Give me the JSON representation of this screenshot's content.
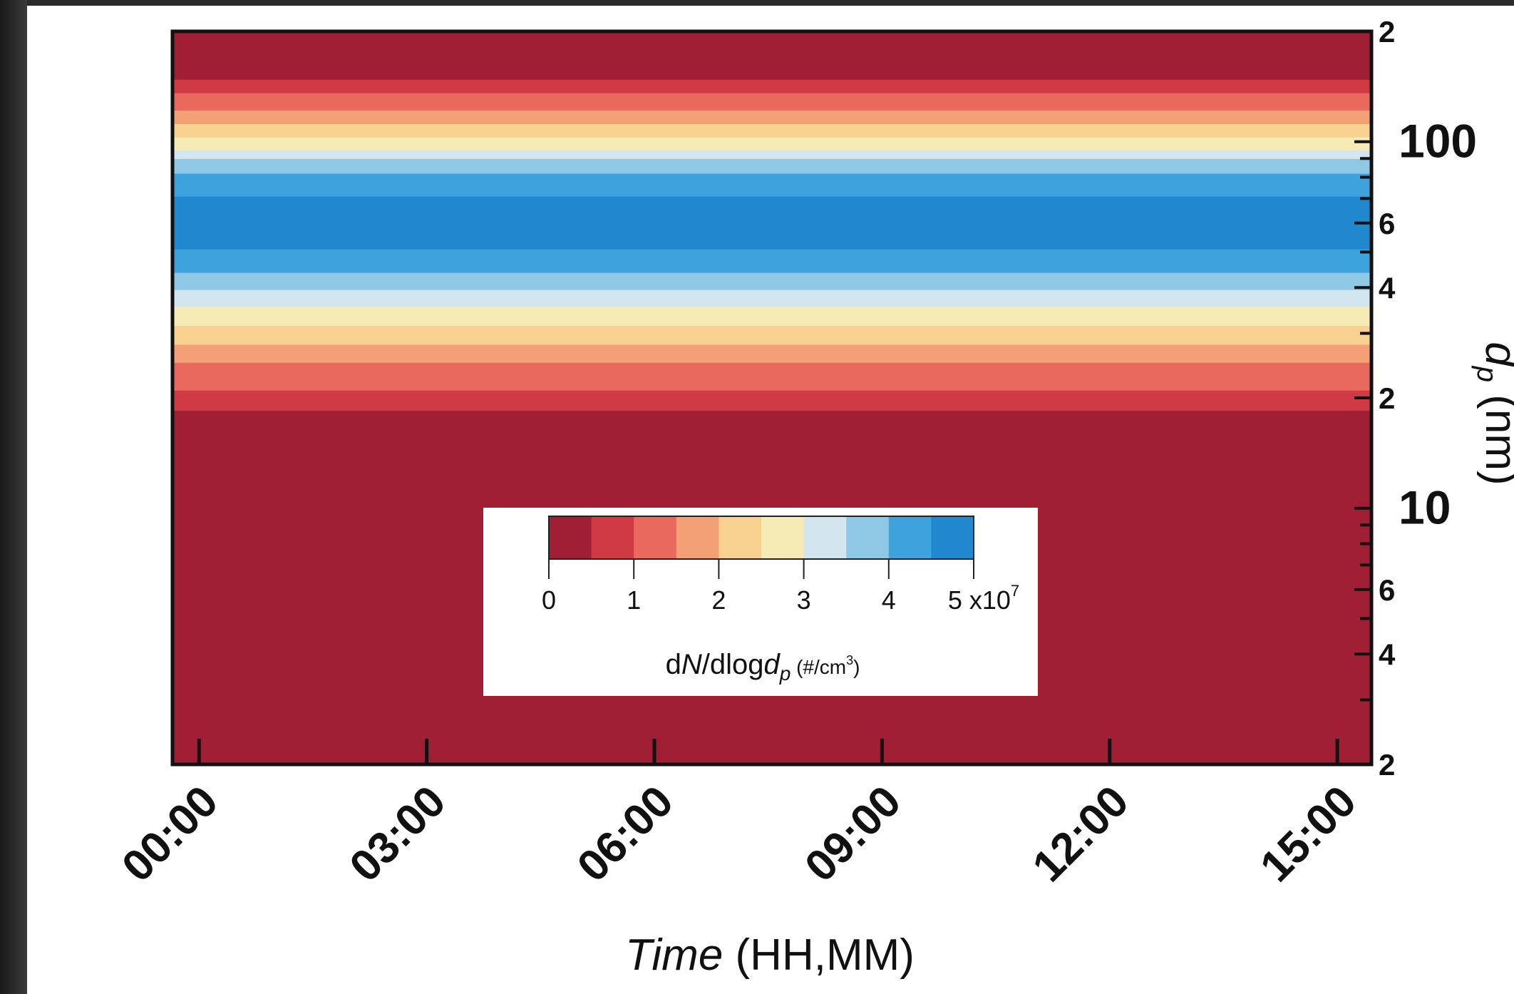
{
  "chart_data": {
    "type": "heatmap",
    "title": "",
    "xlabel_italic": "Time",
    "xlabel_rest": " (HH,MM)",
    "ylabel_var": "d",
    "ylabel_sub": "p",
    "ylabel_unit": " (nm)",
    "x_tick_labels": [
      "00:00",
      "03:00",
      "06:00",
      "09:00",
      "12:00",
      "15:00"
    ],
    "x_tick_hours": [
      0,
      3,
      6,
      9,
      12,
      15
    ],
    "xlim_hours": [
      -0.35,
      15.45
    ],
    "y_scale": "log",
    "ylim": [
      2,
      200
    ],
    "y_tick_labels": [
      {
        "v": 2,
        "t": "2"
      },
      {
        "v": 4,
        "t": "4"
      },
      {
        "v": 6,
        "t": "6"
      },
      {
        "v": 10,
        "t": "10"
      },
      {
        "v": 20,
        "t": "2"
      },
      {
        "v": 40,
        "t": "4"
      },
      {
        "v": 60,
        "t": "6"
      },
      {
        "v": 100,
        "t": "100"
      },
      {
        "v": 200,
        "t": "2"
      }
    ],
    "colorbar": {
      "label_pre": "d",
      "label_italic_n": "N",
      "label_mid": "/dlog",
      "label_italic_d": "d",
      "label_sub": "p",
      "label_units": " (#/cm",
      "label_units_sup": "3",
      "label_units_end": ")",
      "tick_labels": [
        "0",
        "1",
        "2",
        "3",
        "4",
        "5 x10"
      ],
      "exponent": "7",
      "min": 0,
      "max": 5,
      "levels": 10,
      "colors": [
        "#a01f35",
        "#d03a44",
        "#e96a5d",
        "#f3a077",
        "#f8d191",
        "#f6ebb5",
        "#d3e5ee",
        "#8ec8e4",
        "#3ea2dc",
        "#2088cc"
      ]
    },
    "size_distribution_bands": [
      {
        "dp_low": 2,
        "dp_high": 18.5,
        "level": 0
      },
      {
        "dp_low": 18.5,
        "dp_high": 21,
        "level": 1
      },
      {
        "dp_low": 21,
        "dp_high": 25,
        "level": 2
      },
      {
        "dp_low": 25,
        "dp_high": 28,
        "level": 3
      },
      {
        "dp_low": 28,
        "dp_high": 31.5,
        "level": 4
      },
      {
        "dp_low": 31.5,
        "dp_high": 35.5,
        "level": 5
      },
      {
        "dp_low": 35.5,
        "dp_high": 39.5,
        "level": 6
      },
      {
        "dp_low": 39.5,
        "dp_high": 44,
        "level": 7
      },
      {
        "dp_low": 44,
        "dp_high": 51,
        "level": 8
      },
      {
        "dp_low": 51,
        "dp_high": 71,
        "level": 9
      },
      {
        "dp_low": 71,
        "dp_high": 82,
        "level": 8
      },
      {
        "dp_low": 82,
        "dp_high": 90,
        "level": 7
      },
      {
        "dp_low": 90,
        "dp_high": 95,
        "level": 6
      },
      {
        "dp_low": 95,
        "dp_high": 103,
        "level": 5
      },
      {
        "dp_low": 103,
        "dp_high": 112,
        "level": 4
      },
      {
        "dp_low": 112,
        "dp_high": 122,
        "level": 3
      },
      {
        "dp_low": 122,
        "dp_high": 136,
        "level": 2
      },
      {
        "dp_low": 136,
        "dp_high": 148,
        "level": 1
      },
      {
        "dp_low": 148,
        "dp_high": 200,
        "level": 0
      }
    ],
    "grid": false,
    "colorbar_placement": "inset lower-center"
  }
}
